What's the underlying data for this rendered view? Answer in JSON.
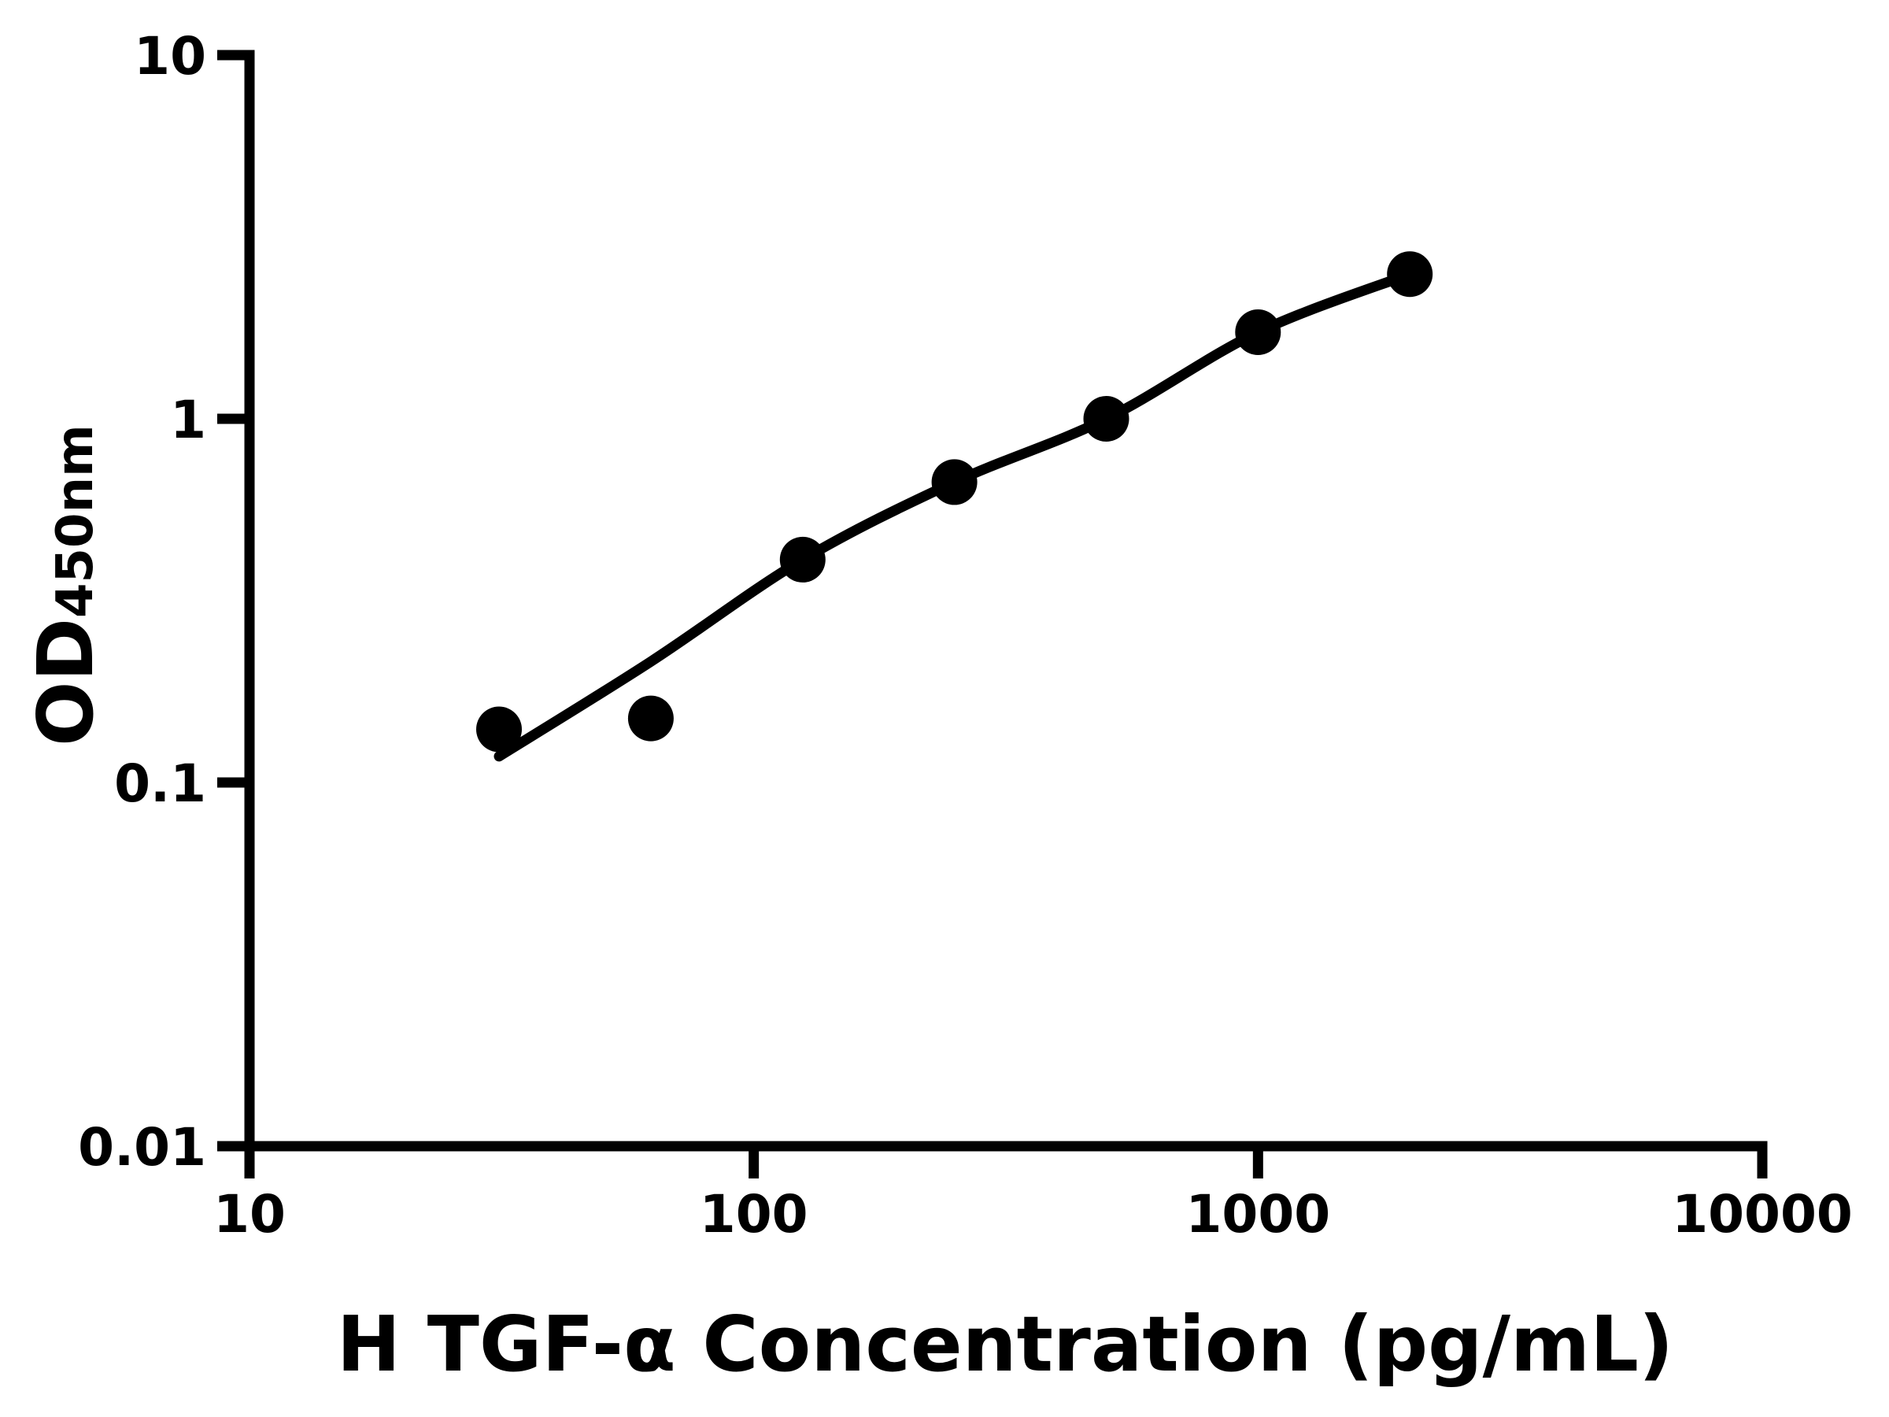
{
  "page": {
    "background_color": "#ffffff",
    "foreground_color": "#000000"
  },
  "chart_data": {
    "type": "scatter",
    "title": "",
    "xlabel": "H TGF-α Concentration (pg/mL)",
    "ylabel": "OD450nm",
    "ylabel_main": "OD",
    "ylabel_sub": "450nm",
    "x_scale": "log10",
    "y_scale": "log10",
    "xlim": [
      10,
      10000
    ],
    "ylim": [
      0.01,
      10
    ],
    "grid": false,
    "legend": "none",
    "x_ticks": [
      {
        "value": 10,
        "label": "10"
      },
      {
        "value": 100,
        "label": "100"
      },
      {
        "value": 1000,
        "label": "1000"
      },
      {
        "value": 10000,
        "label": "10000"
      }
    ],
    "y_ticks": [
      {
        "value": 10,
        "label": "10"
      },
      {
        "value": 1,
        "label": "1"
      },
      {
        "value": 0.1,
        "label": "0.1"
      },
      {
        "value": 0.01,
        "label": "0.01"
      }
    ],
    "series": [
      {
        "name": "standard-points",
        "type": "scatter",
        "marker": "filled-circle",
        "color": "#000000",
        "x": [
          31.25,
          62.5,
          125,
          250,
          500,
          1000,
          2000
        ],
        "y": [
          0.14,
          0.15,
          0.41,
          0.67,
          1.0,
          1.73,
          2.5
        ]
      },
      {
        "name": "fitted-curve",
        "type": "line",
        "color": "#000000",
        "x": [
          31.25,
          62.5,
          125,
          250,
          500,
          1000,
          2000
        ],
        "y": [
          0.118,
          0.215,
          0.41,
          0.67,
          1.0,
          1.73,
          2.5
        ]
      }
    ]
  }
}
